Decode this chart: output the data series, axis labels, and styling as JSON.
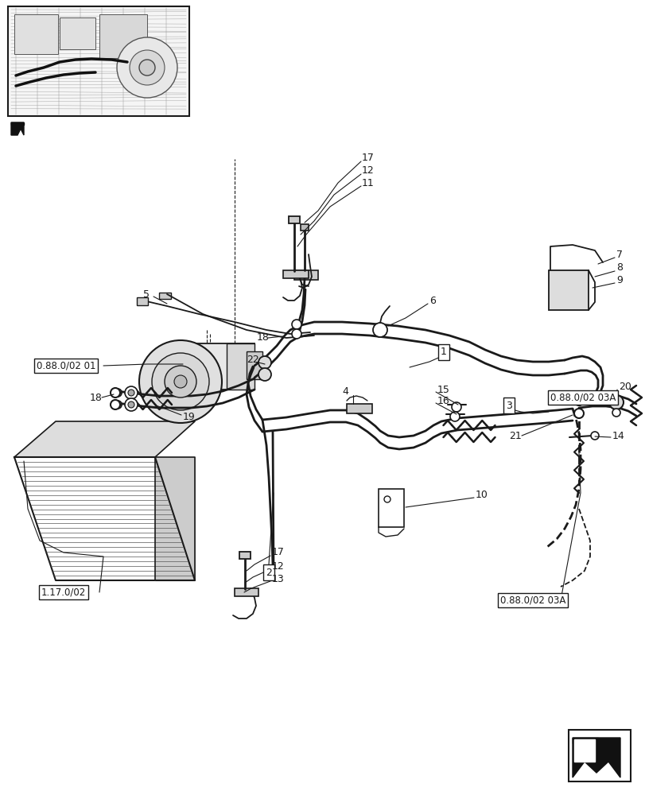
{
  "bg_color": "#ffffff",
  "line_color": "#1a1a1a",
  "fig_width": 8.12,
  "fig_height": 10.0,
  "dpi": 100
}
